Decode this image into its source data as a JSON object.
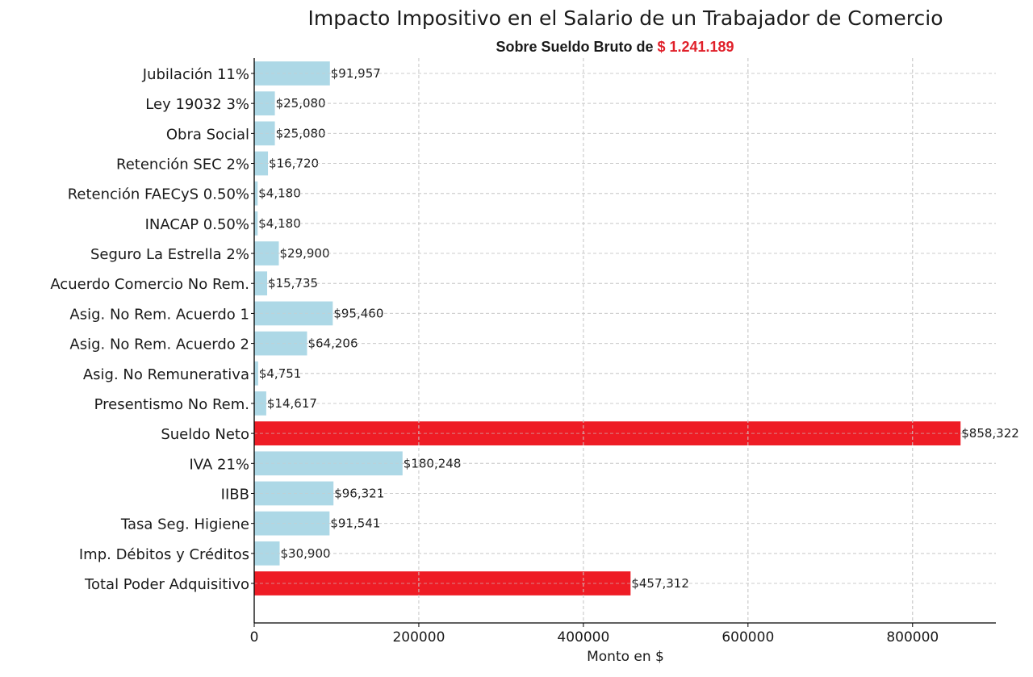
{
  "chart_data": {
    "type": "bar",
    "orientation": "horizontal",
    "title": "Impacto Impositivo en el Salario de un Trabajador de Comercio",
    "subtitle_prefix": "Sobre Sueldo Bruto de ",
    "subtitle_amount": "$ 1.241.189",
    "xlabel": "Monto en $",
    "ylabel": "",
    "xlim": [
      0,
      901238
    ],
    "xticks": [
      0,
      200000,
      400000,
      600000,
      800000
    ],
    "xtick_labels": [
      "0",
      "200000",
      "400000",
      "600000",
      "800000"
    ],
    "grid": true,
    "categories": [
      "Jubilación 11%",
      "Ley 19032 3%",
      "Obra Social",
      "Retención SEC 2%",
      "Retención FAECyS 0.50%",
      "INACAP 0.50%",
      "Seguro La Estrella 2%",
      "Acuerdo Comercio No Rem.",
      "Asig. No Rem. Acuerdo 1",
      "Asig. No Rem. Acuerdo 2",
      "Asig. No Remunerativa",
      "Presentismo No Rem.",
      "Sueldo Neto",
      "IVA 21%",
      "IIBB",
      "Tasa Seg. Higiene",
      "Imp. Débitos y Créditos",
      "Total Poder Adquisitivo"
    ],
    "values": [
      91957,
      25080,
      25080,
      16720,
      4180,
      4180,
      29900,
      15735,
      95460,
      64206,
      4751,
      14617,
      858322,
      180248,
      96321,
      91541,
      30900,
      457312
    ],
    "data_labels": [
      "$91,957",
      "$25,080",
      "$25,080",
      "$16,720",
      "$4,180",
      "$4,180",
      "$29,900",
      "$15,735",
      "$95,460",
      "$64,206",
      "$4,751",
      "$14,617",
      "$858,322",
      "$180,248",
      "$96,321",
      "$91,541",
      "$30,900",
      "$457,312"
    ],
    "highlight": [
      "Sueldo Neto",
      "Total Poder Adquisitivo"
    ],
    "colors": {
      "default": "#add8e6",
      "highlight": "#ee1c25",
      "subtitle_amount": "#e0202a",
      "grid": "#cccccc"
    }
  }
}
